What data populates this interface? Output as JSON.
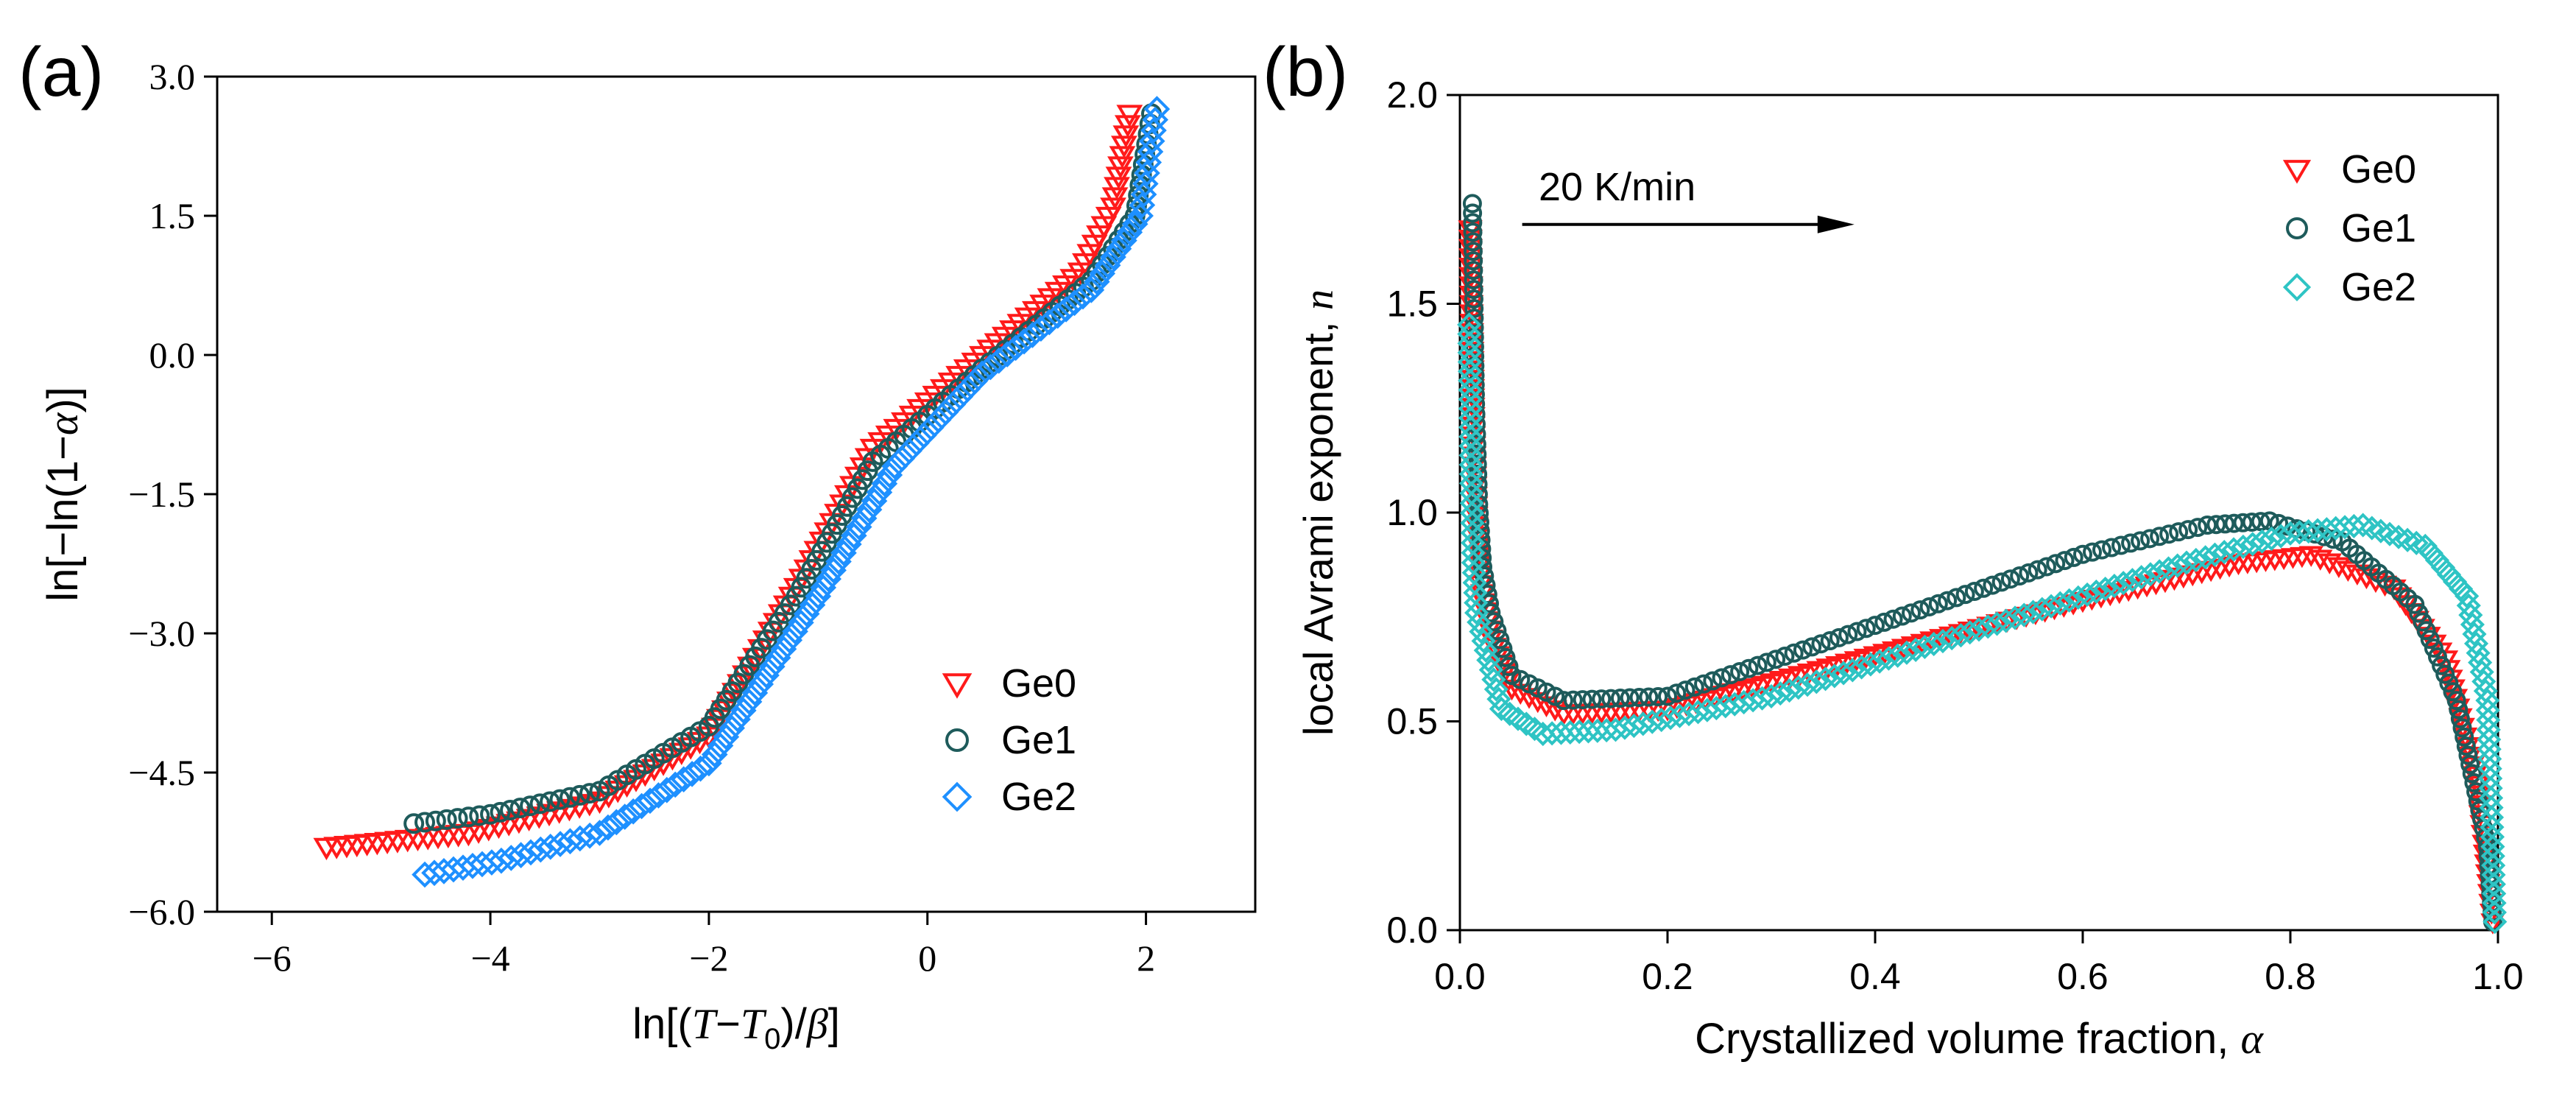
{
  "chart_data": [
    {
      "type": "scatter",
      "panel_label": "(a)",
      "xlabel": "ln[(T−T0)/β]",
      "xlabel_parts": {
        "pre": "ln[(",
        "T": "T",
        "dash": "−",
        "T0": "T",
        "sub0": "0",
        "close": ")/",
        "beta": "β",
        "end": "]"
      },
      "ylabel": "ln[−ln(1−α)]",
      "ylabel_parts": {
        "pre": "ln[−ln(1−",
        "alpha": "α",
        "end": ")]"
      },
      "xlim": [
        -6.5,
        3.0
      ],
      "ylim": [
        -6.0,
        3.0
      ],
      "x_ticks": [
        -6,
        -4,
        -2,
        0,
        2
      ],
      "x_tick_labels": [
        "−6",
        "−4",
        "−2",
        "0",
        "2"
      ],
      "y_ticks": [
        3.0,
        1.5,
        0.0,
        -1.5,
        -3.0,
        -4.5,
        -6.0
      ],
      "y_tick_labels": [
        "3.0",
        "1.5",
        "0.0",
        "−1.5",
        "−3.0",
        "−4.5",
        "−6.0"
      ],
      "legend_position": "bottom-right",
      "series": [
        {
          "name": "Ge0",
          "marker": "triangle-down",
          "color": "#ff1a1a",
          "knots": [
            [
              -5.5,
              -5.3
            ],
            [
              -4.2,
              -5.15
            ],
            [
              -3.0,
              -4.8
            ],
            [
              -2.0,
              -4.1
            ],
            [
              -1.2,
              -2.5
            ],
            [
              -0.5,
              -1.0
            ],
            [
              0.5,
              0.0
            ],
            [
              1.4,
              0.9
            ],
            [
              1.7,
              1.6
            ],
            [
              1.85,
              2.6
            ]
          ]
        },
        {
          "name": "Ge1",
          "marker": "circle",
          "color": "#1e5b5b",
          "knots": [
            [
              -4.7,
              -5.05
            ],
            [
              -4.0,
              -4.95
            ],
            [
              -3.0,
              -4.7
            ],
            [
              -2.0,
              -4.0
            ],
            [
              -1.2,
              -2.6
            ],
            [
              -0.5,
              -1.15
            ],
            [
              0.5,
              -0.15
            ],
            [
              1.5,
              0.8
            ],
            [
              1.9,
              1.5
            ],
            [
              2.05,
              2.6
            ]
          ]
        },
        {
          "name": "Ge2",
          "marker": "diamond",
          "color": "#1e90ff",
          "knots": [
            [
              -4.6,
              -5.6
            ],
            [
              -3.9,
              -5.45
            ],
            [
              -3.0,
              -5.15
            ],
            [
              -2.0,
              -4.4
            ],
            [
              -1.0,
              -2.6
            ],
            [
              -0.3,
              -1.2
            ],
            [
              0.5,
              -0.2
            ],
            [
              1.5,
              0.7
            ],
            [
              1.95,
              1.5
            ],
            [
              2.1,
              2.65
            ]
          ]
        }
      ]
    },
    {
      "type": "scatter",
      "panel_label": "(b)",
      "xlabel": "Crystallized volume fraction, α",
      "xlabel_parts": {
        "pre": "Crystallized volume fraction, ",
        "alpha": "α"
      },
      "ylabel": "local Avrami exponent, n",
      "ylabel_parts": {
        "pre": "local Avrami exponent, ",
        "n": "n"
      },
      "xlim": [
        0.0,
        1.0
      ],
      "ylim": [
        0.0,
        2.0
      ],
      "x_ticks": [
        0.0,
        0.2,
        0.4,
        0.6,
        0.8,
        1.0
      ],
      "x_tick_labels": [
        "0.0",
        "0.2",
        "0.4",
        "0.6",
        "0.8",
        "1.0"
      ],
      "y_ticks": [
        0.0,
        0.5,
        1.0,
        1.5,
        2.0
      ],
      "y_tick_labels": [
        "0.0",
        "0.5",
        "1.0",
        "1.5",
        "2.0"
      ],
      "annotation": {
        "text": "20 K/min",
        "arrow_from": [
          0.06,
          1.69
        ],
        "arrow_to": [
          0.38,
          1.69
        ]
      },
      "legend_position": "top-right",
      "series": [
        {
          "name": "Ge0",
          "marker": "triangle-down",
          "color": "#ff1a1a",
          "knots": [
            [
              0.01,
              1.68
            ],
            [
              0.013,
              1.21
            ],
            [
              0.016,
              0.97
            ],
            [
              0.02,
              0.83
            ],
            [
              0.03,
              0.7
            ],
            [
              0.05,
              0.58
            ],
            [
              0.1,
              0.52
            ],
            [
              0.2,
              0.53
            ],
            [
              0.4,
              0.66
            ],
            [
              0.6,
              0.79
            ],
            [
              0.75,
              0.88
            ],
            [
              0.82,
              0.9
            ],
            [
              0.9,
              0.82
            ],
            [
              0.95,
              0.65
            ],
            [
              0.98,
              0.35
            ],
            [
              0.995,
              0.02
            ]
          ]
        },
        {
          "name": "Ge1",
          "marker": "circle",
          "color": "#1e5b5b",
          "knots": [
            [
              0.012,
              1.74
            ],
            [
              0.015,
              1.26
            ],
            [
              0.018,
              1.02
            ],
            [
              0.022,
              0.87
            ],
            [
              0.03,
              0.76
            ],
            [
              0.05,
              0.61
            ],
            [
              0.1,
              0.55
            ],
            [
              0.2,
              0.56
            ],
            [
              0.4,
              0.73
            ],
            [
              0.6,
              0.9
            ],
            [
              0.72,
              0.97
            ],
            [
              0.78,
              0.98
            ],
            [
              0.85,
              0.93
            ],
            [
              0.92,
              0.78
            ],
            [
              0.96,
              0.55
            ],
            [
              0.99,
              0.2
            ],
            [
              0.995,
              0.02
            ]
          ]
        },
        {
          "name": "Ge2",
          "marker": "diamond",
          "color": "#2ec4c4",
          "knots": [
            [
              0.009,
              1.45
            ],
            [
              0.011,
              1.07
            ],
            [
              0.013,
              0.88
            ],
            [
              0.016,
              0.76
            ],
            [
              0.025,
              0.67
            ],
            [
              0.04,
              0.53
            ],
            [
              0.08,
              0.47
            ],
            [
              0.15,
              0.48
            ],
            [
              0.3,
              0.56
            ],
            [
              0.5,
              0.72
            ],
            [
              0.7,
              0.88
            ],
            [
              0.8,
              0.95
            ],
            [
              0.87,
              0.97
            ],
            [
              0.93,
              0.92
            ],
            [
              0.97,
              0.8
            ],
            [
              0.99,
              0.55
            ],
            [
              0.995,
              0.2
            ],
            [
              0.997,
              0.02
            ]
          ]
        }
      ]
    }
  ]
}
